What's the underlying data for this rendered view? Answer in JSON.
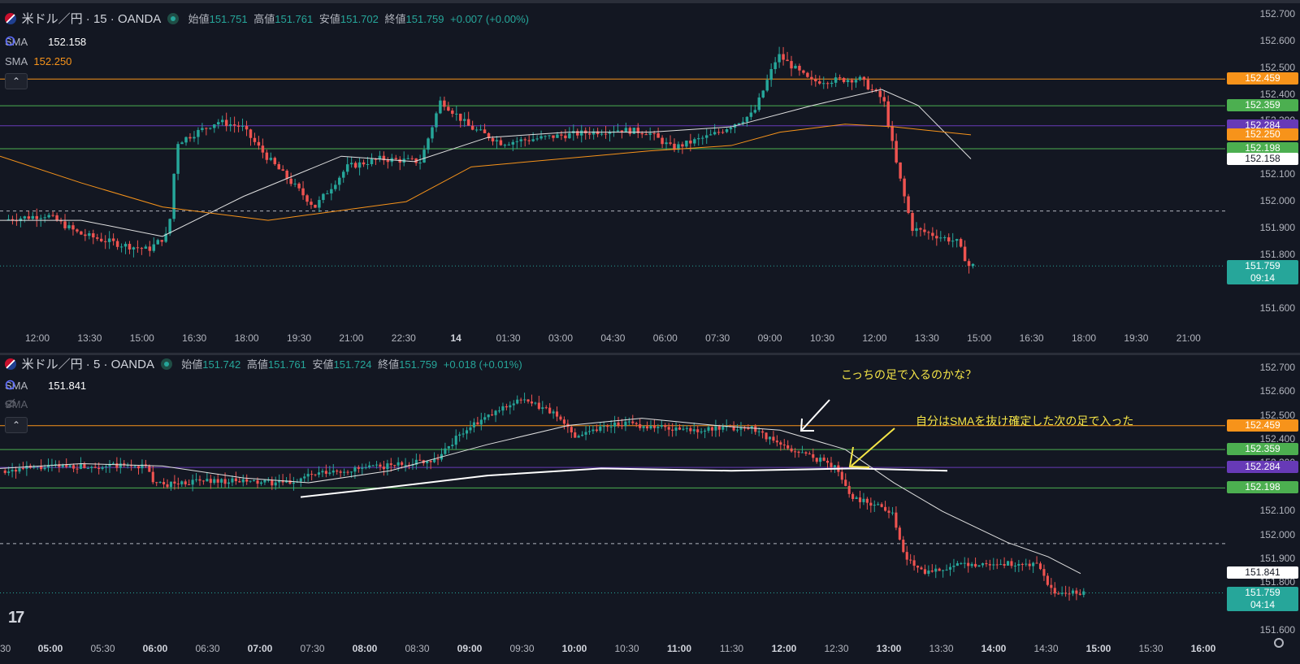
{
  "colors": {
    "bg": "#131722",
    "up": "#26a69a",
    "down": "#ef5350",
    "orange": "#f7931a",
    "green": "#4caf50",
    "purple": "#673ab7",
    "annotation": "#f5e547",
    "sma_white": "#ffffff"
  },
  "chart_data": [
    {
      "type": "candlestick",
      "symbol": "米ドル／円 · 15 · OANDA",
      "ohlc": {
        "open": "151.751",
        "high": "151.761",
        "low": "151.702",
        "close": "151.759",
        "change": "+0.007 (+0.00%)"
      },
      "sma": [
        {
          "label": "SMA",
          "value": "152.158"
        },
        {
          "label": "SMA",
          "value": "152.250"
        }
      ],
      "ylim": [
        151.55,
        152.7
      ],
      "y_ticks": [
        "152.700",
        "152.600",
        "152.500",
        "152.400",
        "152.300",
        "152.200",
        "152.100",
        "152.000",
        "151.900",
        "151.800",
        "151.700",
        "151.600"
      ],
      "x_ticks": [
        "12:00",
        "13:30",
        "15:00",
        "16:30",
        "18:00",
        "19:30",
        "21:00",
        "22:30",
        "14",
        "01:30",
        "03:00",
        "04:30",
        "06:00",
        "07:30",
        "09:00",
        "10:30",
        "12:00",
        "13:30",
        "15:00",
        "16:30",
        "18:00",
        "19:30",
        "21:00"
      ],
      "price_labels": [
        {
          "value": "152.459",
          "color": "#f7931a"
        },
        {
          "value": "152.359",
          "color": "#4caf50"
        },
        {
          "value": "152.284",
          "color": "#673ab7"
        },
        {
          "value": "152.250",
          "color": "#f7931a"
        },
        {
          "value": "152.198",
          "color": "#4caf50"
        },
        {
          "value": "152.158",
          "color": "#ffffff"
        },
        {
          "value": "151.759",
          "color": "#26a69a",
          "sub": "09:14"
        }
      ],
      "hlines": [
        152.459,
        152.359,
        152.284,
        152.198
      ],
      "dashed_line": 151.965
    },
    {
      "type": "candlestick",
      "symbol": "米ドル／円 · 5 · OANDA",
      "ohlc": {
        "open": "151.742",
        "high": "151.761",
        "low": "151.724",
        "close": "151.759",
        "change": "+0.018 (+0.01%)"
      },
      "sma": [
        {
          "label": "SMA",
          "value": "151.841"
        },
        {
          "label": "SMA",
          "value": ""
        }
      ],
      "ylim": [
        151.57,
        152.72
      ],
      "y_ticks": [
        "152.700",
        "152.600",
        "152.500",
        "152.400",
        "152.300",
        "152.200",
        "152.100",
        "152.000",
        "151.900",
        "151.800",
        "151.700",
        "151.600"
      ],
      "x_ticks": [
        "30",
        "05:00",
        "05:30",
        "06:00",
        "06:30",
        "07:00",
        "07:30",
        "08:00",
        "08:30",
        "09:00",
        "09:30",
        "10:00",
        "10:30",
        "11:00",
        "11:30",
        "12:00",
        "12:30",
        "13:00",
        "13:30",
        "14:00",
        "14:30",
        "15:00",
        "15:30",
        "16:00"
      ],
      "bold_ticks": [
        "05:00",
        "06:00",
        "07:00",
        "08:00",
        "09:00",
        "10:00",
        "11:00",
        "12:00",
        "13:00",
        "14:00",
        "15:00",
        "16:00"
      ],
      "price_labels": [
        {
          "value": "152.459",
          "color": "#f7931a"
        },
        {
          "value": "152.359",
          "color": "#4caf50"
        },
        {
          "value": "152.284",
          "color": "#673ab7"
        },
        {
          "value": "152.198",
          "color": "#4caf50"
        },
        {
          "value": "151.841",
          "color": "#ffffff"
        },
        {
          "value": "151.759",
          "color": "#26a69a",
          "sub": "04:14"
        }
      ],
      "annotations": [
        "こっちの足で入るのかな？",
        "自分はSMAを抜け確定した次の足で入った"
      ]
    }
  ]
}
